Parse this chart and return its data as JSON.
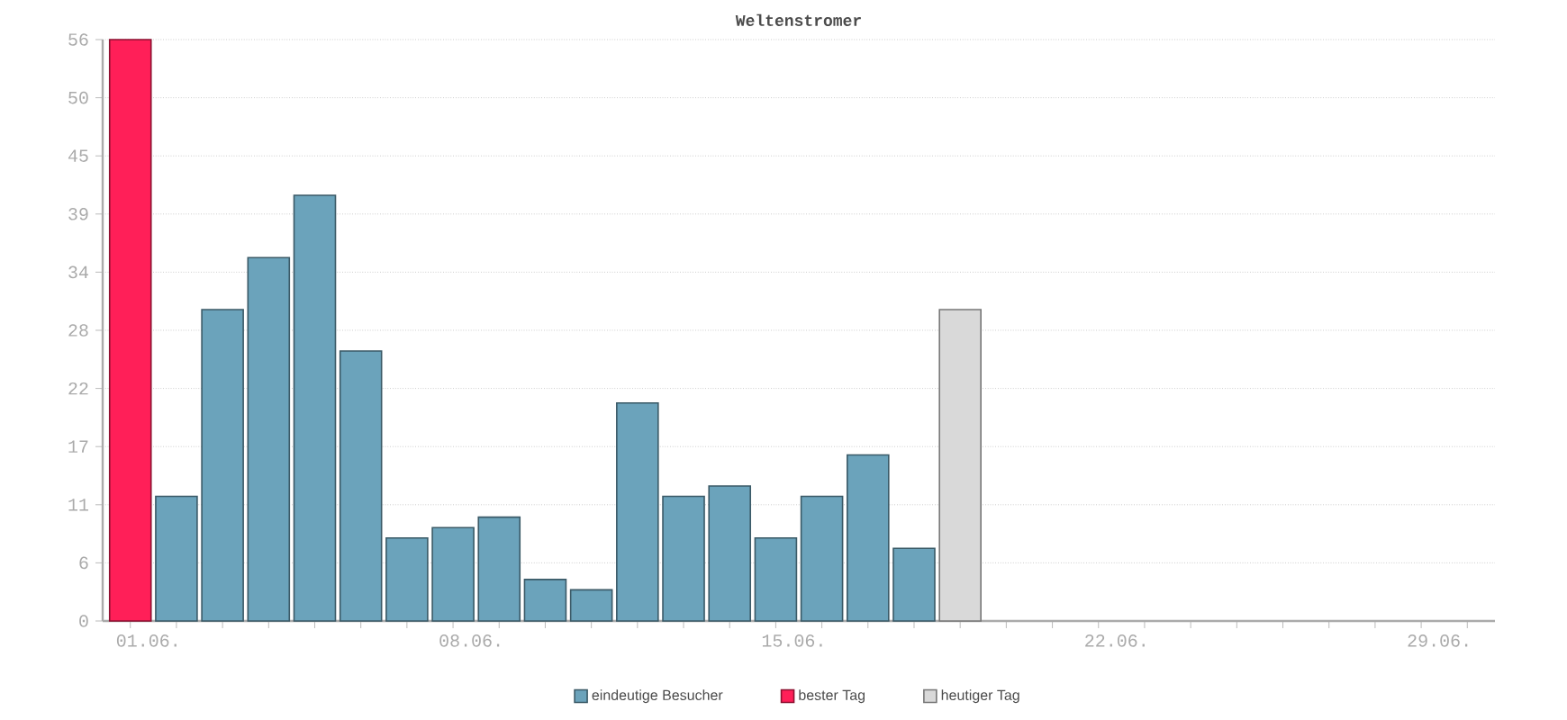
{
  "chart_data": {
    "type": "bar",
    "title": "Weltenstromer",
    "categories": [
      "01.06.",
      null,
      null,
      null,
      null,
      null,
      null,
      "08.06.",
      null,
      null,
      null,
      null,
      null,
      null,
      "15.06.",
      null,
      null,
      null,
      null,
      null,
      null,
      "22.06.",
      null,
      null,
      null,
      null,
      null,
      null,
      "29.06.",
      null
    ],
    "series": [
      {
        "name": "eindeutige Besucher",
        "color": "#6ba3bb",
        "values": [
          null,
          12,
          30,
          35,
          41,
          26,
          8,
          9,
          10,
          4,
          3,
          21,
          12,
          13,
          8,
          12,
          16,
          7,
          null,
          null,
          null,
          null,
          null,
          null,
          null,
          null,
          null,
          null,
          null,
          null
        ]
      },
      {
        "name": "bester Tag",
        "color": "#ff1f58",
        "values": [
          56,
          null,
          null,
          null,
          null,
          null,
          null,
          null,
          null,
          null,
          null,
          null,
          null,
          null,
          null,
          null,
          null,
          null,
          null,
          null,
          null,
          null,
          null,
          null,
          null,
          null,
          null,
          null,
          null,
          null
        ]
      },
      {
        "name": "heutiger Tag",
        "color": "#d9d9d9",
        "values": [
          null,
          null,
          null,
          null,
          null,
          null,
          null,
          null,
          null,
          null,
          null,
          null,
          null,
          null,
          null,
          null,
          null,
          null,
          30,
          null,
          null,
          null,
          null,
          null,
          null,
          null,
          null,
          null,
          null,
          null
        ]
      }
    ],
    "ylim": [
      0,
      56
    ],
    "yticks": [
      0,
      {
        "value": 5.6,
        "label": "6"
      },
      {
        "value": 11.2,
        "label": "11"
      },
      {
        "value": 16.8,
        "label": "17"
      },
      {
        "value": 22.4,
        "label": "22"
      },
      {
        "value": 28,
        "label": "28"
      },
      {
        "value": 33.6,
        "label": "34"
      },
      {
        "value": 39.2,
        "label": "39"
      },
      {
        "value": 44.8,
        "label": "45"
      },
      {
        "value": 50.4,
        "label": "50"
      },
      {
        "value": 56,
        "label": "56"
      }
    ],
    "grid": "y",
    "legend": "bottom"
  }
}
